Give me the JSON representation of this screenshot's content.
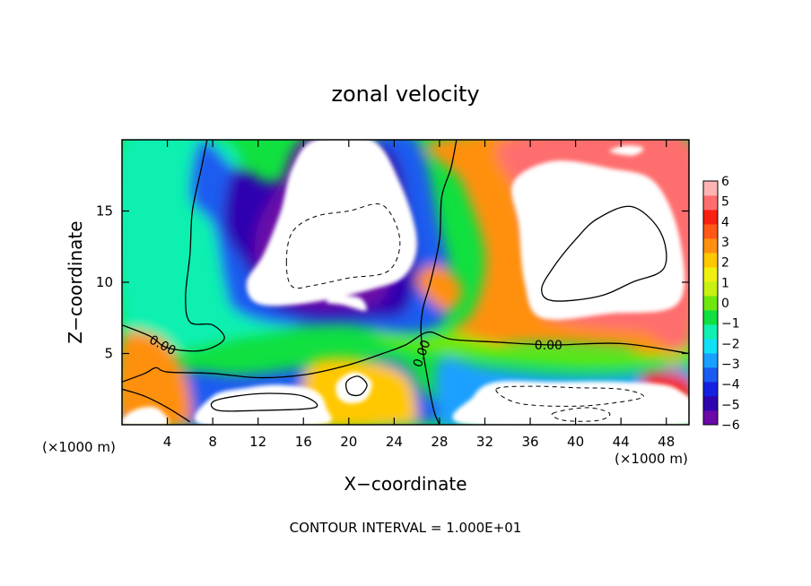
{
  "chart_data": {
    "type": "heatmap",
    "title": "zonal velocity",
    "xlabel": "X−coordinate",
    "ylabel": "Z−coordinate",
    "x_unit_label": "(×1000 m)",
    "y_unit_label": "(×1000 m)",
    "footer": "CONTOUR INTERVAL = 1.000E+01",
    "xlim": [
      0,
      50
    ],
    "ylim": [
      0,
      20
    ],
    "x_ticks": [
      4,
      8,
      12,
      16,
      20,
      24,
      28,
      32,
      36,
      40,
      44,
      48
    ],
    "y_ticks": [
      5,
      10,
      15
    ],
    "x_tick_labels": [
      "4",
      "8",
      "12",
      "16",
      "20",
      "24",
      "28",
      "32",
      "36",
      "40",
      "44",
      "48"
    ],
    "y_tick_labels": [
      "5",
      "10",
      "15"
    ],
    "colorbar": {
      "min": -6,
      "max": 6,
      "tick_labels": [
        "6",
        "5",
        "4",
        "3",
        "2",
        "1",
        "0",
        "−1",
        "−2",
        "−3",
        "−4",
        "−5",
        "−6"
      ],
      "colors": [
        "#6a0aa8",
        "#2f05b0",
        "#1620e0",
        "#1a5cf0",
        "#1aa0ff",
        "#12e0f5",
        "#10f0b0",
        "#10e040",
        "#70e810",
        "#c8f010",
        "#f0f010",
        "#ffc800",
        "#ff9010",
        "#ff5818",
        "#f82010",
        "#ff6e6e",
        "#ffb4b4"
      ]
    },
    "contour_labels": [
      {
        "text": "0.00",
        "x": 3.6,
        "y": 5.6,
        "rotate": 28
      },
      {
        "text": "0.00",
        "x": 26.4,
        "y": 5.0,
        "rotate": -70
      },
      {
        "text": "0.00",
        "x": 37.6,
        "y": 5.6,
        "rotate": 0
      }
    ],
    "blobs": [
      {
        "value": -1.2,
        "pts": [
          [
            0,
            20
          ],
          [
            9,
            20
          ],
          [
            11,
            17
          ],
          [
            13,
            13
          ],
          [
            15,
            9
          ],
          [
            16,
            7
          ],
          [
            10,
            6
          ],
          [
            4,
            5
          ],
          [
            2,
            6
          ],
          [
            0,
            7
          ]
        ]
      },
      {
        "value": -3.2,
        "pts": [
          [
            6,
            16
          ],
          [
            8,
            14
          ],
          [
            9,
            10
          ],
          [
            10,
            8
          ],
          [
            14,
            7
          ],
          [
            20,
            7
          ],
          [
            24,
            6.5
          ],
          [
            28,
            7
          ],
          [
            29,
            10
          ],
          [
            28,
            14
          ],
          [
            26,
            20
          ],
          [
            22,
            20
          ],
          [
            18,
            17
          ],
          [
            14,
            16
          ],
          [
            10,
            18
          ],
          [
            7,
            20
          ]
        ]
      },
      {
        "value": -4.8,
        "pts": [
          [
            9,
            14
          ],
          [
            11,
            11
          ],
          [
            12,
            9
          ],
          [
            16,
            7.5
          ],
          [
            22,
            7.5
          ],
          [
            25,
            8
          ],
          [
            26,
            11
          ],
          [
            25.5,
            14
          ],
          [
            24,
            19
          ],
          [
            20,
            20
          ],
          [
            17,
            18
          ],
          [
            13,
            17
          ],
          [
            10,
            18
          ]
        ]
      },
      {
        "value": -5.7,
        "pts": [
          [
            14,
            17
          ],
          [
            12,
            14
          ],
          [
            12,
            11
          ],
          [
            15,
            8.5
          ],
          [
            20,
            8.2
          ],
          [
            23,
            8.8
          ],
          [
            24,
            12
          ],
          [
            23.5,
            16
          ],
          [
            21,
            20
          ],
          [
            16,
            20
          ]
        ]
      },
      {
        "value": 2.6,
        "pts": [
          [
            28,
            20
          ],
          [
            30,
            17
          ],
          [
            32,
            12
          ],
          [
            31,
            8
          ],
          [
            29,
            6.5
          ],
          [
            30,
            5.5
          ],
          [
            36,
            5.8
          ],
          [
            44,
            5.5
          ],
          [
            50,
            5
          ],
          [
            50,
            20
          ]
        ]
      },
      {
        "value": 4.8,
        "pts": [
          [
            34,
            20
          ],
          [
            35,
            16
          ],
          [
            36,
            12
          ],
          [
            37,
            8
          ],
          [
            40,
            7
          ],
          [
            46,
            6.5
          ],
          [
            50,
            6
          ],
          [
            50,
            20
          ]
        ]
      },
      {
        "value": 3.0,
        "pts": [
          [
            26,
            10
          ],
          [
            27.5,
            8.5
          ],
          [
            29,
            8
          ],
          [
            30,
            9.5
          ],
          [
            28.5,
            11
          ],
          [
            26.8,
            11
          ]
        ]
      },
      {
        "value": -2.6,
        "pts": [
          [
            28,
            4.5
          ],
          [
            32,
            4
          ],
          [
            38,
            3.5
          ],
          [
            44,
            3.5
          ],
          [
            50,
            4
          ],
          [
            50,
            2
          ],
          [
            44,
            1.5
          ],
          [
            36,
            1.5
          ],
          [
            30,
            0
          ],
          [
            28,
            0
          ]
        ]
      },
      {
        "value": -3.6,
        "pts": [
          [
            0,
            1
          ],
          [
            2,
            3.5
          ],
          [
            6,
            3.8
          ],
          [
            10,
            3.5
          ],
          [
            14,
            3.8
          ],
          [
            20,
            4.5
          ],
          [
            24,
            4.5
          ],
          [
            26,
            3
          ],
          [
            26,
            0
          ],
          [
            0,
            0
          ]
        ]
      },
      {
        "value": 3.1,
        "pts": [
          [
            0,
            6
          ],
          [
            3,
            6.2
          ],
          [
            5,
            4.5
          ],
          [
            6,
            2
          ],
          [
            5.5,
            0
          ],
          [
            0,
            0
          ]
        ]
      },
      {
        "value": 2.2,
        "pts": [
          [
            17,
            4.5
          ],
          [
            21,
            4.6
          ],
          [
            25,
            3.5
          ],
          [
            26,
            1
          ],
          [
            25,
            0
          ],
          [
            16,
            0
          ],
          [
            16,
            3
          ]
        ]
      },
      {
        "value": 0.3,
        "pts": [
          [
            22,
            6.5
          ],
          [
            26,
            6
          ],
          [
            29,
            6.5
          ],
          [
            34,
            5.5
          ],
          [
            40,
            5.2
          ],
          [
            48,
            5
          ],
          [
            50,
            5.5
          ],
          [
            50,
            4.5
          ],
          [
            42,
            4.2
          ],
          [
            34,
            4.6
          ],
          [
            28,
            5
          ],
          [
            24,
            5.5
          ]
        ]
      },
      {
        "value": 4.4,
        "pts": [
          [
            46,
            3.5
          ],
          [
            50,
            3.2
          ],
          [
            50,
            1
          ],
          [
            47,
            0.8
          ]
        ]
      }
    ],
    "white_regions": [
      {
        "pts": [
          [
            12.5,
            12
          ],
          [
            14,
            15
          ],
          [
            15,
            18
          ],
          [
            17,
            20
          ],
          [
            22,
            20
          ],
          [
            24.5,
            17
          ],
          [
            26,
            13
          ],
          [
            25,
            10.5
          ],
          [
            22,
            9.5
          ],
          [
            16,
            8.5
          ],
          [
            12,
            8.5
          ],
          [
            11,
            10
          ]
        ]
      },
      {
        "pts": [
          [
            34.5,
            17
          ],
          [
            35,
            14
          ],
          [
            35.5,
            10
          ],
          [
            37,
            7.5
          ],
          [
            43,
            7.8
          ],
          [
            49,
            8.5
          ],
          [
            49.2,
            13
          ],
          [
            47,
            17
          ],
          [
            43,
            18
          ],
          [
            38,
            18.5
          ]
        ]
      },
      {
        "pts": [
          [
            18,
            8.6
          ],
          [
            19.5,
            8.4
          ],
          [
            21.5,
            8
          ],
          [
            21,
            8.9
          ],
          [
            19,
            9
          ]
        ]
      },
      {
        "pts": [
          [
            31,
            2
          ],
          [
            33,
            3
          ],
          [
            38,
            3
          ],
          [
            44,
            3
          ],
          [
            49,
            2.5
          ],
          [
            49.8,
            0
          ],
          [
            30.5,
            0
          ]
        ]
      },
      {
        "pts": [
          [
            7,
            0
          ],
          [
            8,
            2
          ],
          [
            11,
            2.6
          ],
          [
            14,
            2.8
          ],
          [
            17,
            2.4
          ],
          [
            18,
            1.2
          ],
          [
            17.5,
            0
          ]
        ]
      },
      {
        "pts": [
          [
            19,
            3
          ],
          [
            20.5,
            3.7
          ],
          [
            22,
            3
          ],
          [
            21.5,
            1.8
          ],
          [
            20,
            1.5
          ],
          [
            19,
            2
          ]
        ]
      },
      {
        "pts": [
          [
            0,
            0
          ],
          [
            1,
            1
          ],
          [
            3,
            1.2
          ],
          [
            4,
            0
          ]
        ]
      },
      {
        "pts": [
          [
            43,
            19.2
          ],
          [
            44.5,
            19.6
          ],
          [
            46,
            19.4
          ],
          [
            45,
            18.9
          ]
        ]
      }
    ],
    "contours_solid": [
      {
        "closed": false,
        "pts": [
          [
            7.5,
            20
          ],
          [
            7,
            18
          ],
          [
            6.2,
            15
          ],
          [
            6,
            12
          ],
          [
            5.6,
            9
          ],
          [
            6,
            7.2
          ],
          [
            8,
            7
          ],
          [
            9,
            6
          ],
          [
            7,
            5.2
          ],
          [
            4,
            5.4
          ],
          [
            2.5,
            6.2
          ],
          [
            0,
            7
          ]
        ]
      },
      {
        "closed": false,
        "pts": [
          [
            0,
            3
          ],
          [
            2,
            3.6
          ],
          [
            3,
            4
          ],
          [
            4,
            3.7
          ],
          [
            8,
            3.6
          ],
          [
            12,
            3.3
          ],
          [
            16,
            3.5
          ],
          [
            20,
            4.2
          ],
          [
            23,
            5
          ],
          [
            25,
            5.6
          ],
          [
            27,
            6.5
          ],
          [
            29,
            6
          ],
          [
            33,
            5.8
          ],
          [
            38,
            5.6
          ],
          [
            44,
            5.7
          ],
          [
            50,
            5
          ]
        ]
      },
      {
        "closed": false,
        "pts": [
          [
            29.5,
            20
          ],
          [
            29,
            18
          ],
          [
            28.2,
            16
          ],
          [
            28,
            13
          ],
          [
            27.2,
            10
          ],
          [
            26.5,
            8
          ],
          [
            26.4,
            6
          ],
          [
            27,
            3
          ],
          [
            27.5,
            1
          ],
          [
            28,
            0
          ]
        ]
      },
      {
        "closed": false,
        "pts": [
          [
            0,
            2.5
          ],
          [
            2,
            2
          ],
          [
            4,
            1.2
          ],
          [
            6,
            0.2
          ]
        ]
      },
      {
        "closed": true,
        "pts": [
          [
            37,
            9.5
          ],
          [
            38,
            11
          ],
          [
            40,
            13
          ],
          [
            42,
            14.5
          ],
          [
            45,
            15.3
          ],
          [
            47.5,
            13.5
          ],
          [
            47.8,
            11
          ],
          [
            45,
            10
          ],
          [
            42,
            9
          ],
          [
            38,
            8.7
          ]
        ]
      },
      {
        "closed": true,
        "pts": [
          [
            8,
            1.6
          ],
          [
            10,
            2
          ],
          [
            13,
            2.2
          ],
          [
            16,
            2
          ],
          [
            17,
            1.2
          ],
          [
            12,
            1
          ],
          [
            8.5,
            1
          ]
        ]
      },
      {
        "closed": true,
        "pts": [
          [
            19.8,
            3
          ],
          [
            20.8,
            3.4
          ],
          [
            21.6,
            2.8
          ],
          [
            21,
            2.1
          ],
          [
            20,
            2.2
          ]
        ]
      }
    ],
    "contours_dashed": [
      {
        "closed": true,
        "pts": [
          [
            14.5,
            11.4
          ],
          [
            15,
            13.5
          ],
          [
            17,
            14.6
          ],
          [
            20,
            15
          ],
          [
            23,
            15.4
          ],
          [
            24.5,
            13
          ],
          [
            23.5,
            10.8
          ],
          [
            20,
            10.3
          ],
          [
            17,
            9.8
          ],
          [
            15,
            9.7
          ]
        ]
      },
      {
        "closed": true,
        "pts": [
          [
            33,
            2.5
          ],
          [
            36,
            2.7
          ],
          [
            40,
            2.6
          ],
          [
            44,
            2.5
          ],
          [
            46,
            2
          ],
          [
            44,
            1.6
          ],
          [
            40,
            1.3
          ],
          [
            35,
            1.5
          ]
        ]
      },
      {
        "closed": true,
        "pts": [
          [
            38,
            0.8
          ],
          [
            41,
            1.2
          ],
          [
            43,
            0.8
          ],
          [
            42,
            0.3
          ],
          [
            39,
            0.3
          ]
        ]
      }
    ]
  }
}
